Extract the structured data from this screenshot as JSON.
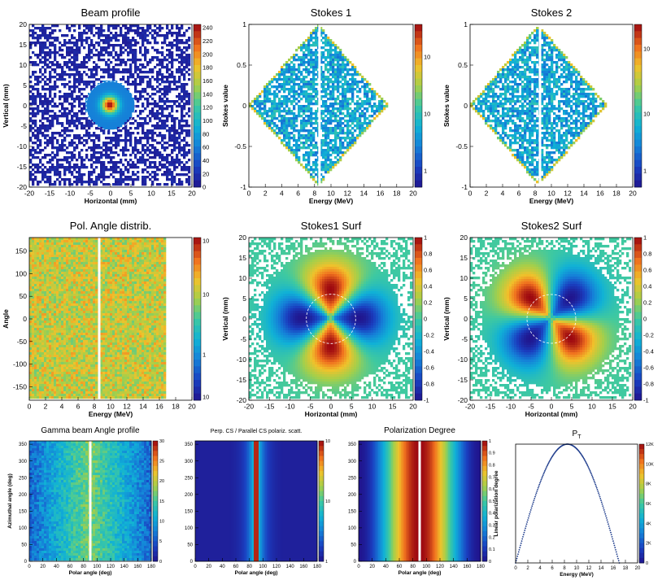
{
  "chart_data": [
    {
      "id": "beam_profile",
      "type": "heatmap",
      "style": "beam",
      "title": "Beam profile",
      "xlabel": "Horizontal (mm)",
      "ylabel": "Vertical (mm)",
      "xlim": [
        -20,
        20
      ],
      "ylim": [
        -20,
        20
      ],
      "xticks": [
        -20,
        -15,
        -10,
        -5,
        0,
        5,
        10,
        15,
        20
      ],
      "yticks": [
        -20,
        -15,
        -10,
        -5,
        0,
        5,
        10,
        15,
        20
      ],
      "colorbar_ticks": [
        0,
        20,
        40,
        60,
        80,
        100,
        120,
        140,
        160,
        180,
        200,
        220,
        240
      ],
      "colorbar_range": [
        0,
        245
      ],
      "colorbar_scale": "linear",
      "overlay": "dashed circle r=6 mm at origin"
    },
    {
      "id": "stokes1",
      "type": "heatmap",
      "style": "diamond",
      "title": "Stokes 1",
      "xlabel": "Energy (MeV)",
      "ylabel": "Stokes value",
      "xlim": [
        0,
        20
      ],
      "ylim": [
        -1,
        1
      ],
      "xticks": [
        0,
        2,
        4,
        6,
        8,
        10,
        12,
        14,
        16,
        18,
        20
      ],
      "yticks": [
        -1,
        -0.5,
        0,
        0.5,
        1
      ],
      "colorbar_ticks": [
        "10",
        "1"
      ],
      "colorbar_labels": [
        {
          "text": "10",
          "frac": 0.2
        },
        {
          "text": "10",
          "frac": 0.55
        },
        {
          "text": "1",
          "frac": 0.9
        }
      ],
      "colorbar_scale": "log"
    },
    {
      "id": "stokes2",
      "type": "heatmap",
      "style": "diamond",
      "title": "Stokes 2",
      "xlabel": "Energy (MeV)",
      "ylabel": "Stokes value",
      "xlim": [
        0,
        20
      ],
      "ylim": [
        -1,
        1
      ],
      "xticks": [
        0,
        2,
        4,
        6,
        8,
        10,
        12,
        14,
        16,
        18,
        20
      ],
      "yticks": [
        -1,
        -0.5,
        0,
        0.5,
        1
      ],
      "colorbar_labels": [
        {
          "text": "10",
          "frac": 0.15
        },
        {
          "text": "10",
          "frac": 0.55
        },
        {
          "text": "1",
          "frac": 0.9
        }
      ],
      "colorbar_scale": "log"
    },
    {
      "id": "pol_angle",
      "type": "heatmap",
      "style": "angle",
      "title": "Pol. Angle distrib.",
      "xlabel": "Energy (MeV)",
      "ylabel": "Angle",
      "xlim": [
        0,
        20
      ],
      "ylim": [
        -180,
        180
      ],
      "xticks": [
        0,
        2,
        4,
        6,
        8,
        10,
        12,
        14,
        16,
        18,
        20
      ],
      "yticks": [
        -150,
        -100,
        -50,
        0,
        50,
        100,
        150
      ],
      "colorbar_labels": [
        {
          "text": "10",
          "frac": 0.02
        },
        {
          "text": "10",
          "frac": 0.35
        },
        {
          "text": "1",
          "frac": 0.72
        },
        {
          "text": "10",
          "frac": 0.98
        }
      ],
      "colorbar_scale": "log"
    },
    {
      "id": "stokes1_surf",
      "type": "heatmap",
      "style": "quadS1",
      "title": "Stokes1 Surf",
      "xlabel": "Horizontal (mm)",
      "ylabel": "Vertical (mm)",
      "xlim": [
        -20,
        20
      ],
      "ylim": [
        -20,
        20
      ],
      "xticks": [
        -20,
        -15,
        -10,
        -5,
        0,
        5,
        10,
        15,
        20
      ],
      "yticks": [
        -20,
        -15,
        -10,
        -5,
        0,
        5,
        10,
        15,
        20
      ],
      "colorbar_labels": [
        {
          "text": "0.8",
          "frac": 0.1
        },
        {
          "text": "0.6",
          "frac": 0.2
        },
        {
          "text": "0.4",
          "frac": 0.3
        },
        {
          "text": "0.2",
          "frac": 0.4
        },
        {
          "text": "0",
          "frac": 0.5
        },
        {
          "text": "-0.2",
          "frac": 0.6
        },
        {
          "text": "-0.4",
          "frac": 0.7
        },
        {
          "text": "-0.6",
          "frac": 0.8
        },
        {
          "text": "-0.8",
          "frac": 0.9
        },
        {
          "text": "-1",
          "frac": 1.0
        },
        {
          "text": "1",
          "frac": 0.0
        }
      ],
      "colorbar_range": [
        -1,
        1
      ],
      "colorbar_scale": "linear",
      "overlay": "dashed circle r=6 mm at origin"
    },
    {
      "id": "stokes2_surf",
      "type": "heatmap",
      "style": "quadS2",
      "title": "Stokes2 Surf",
      "xlabel": "Horizontal (mm)",
      "ylabel": "Vertical (mm)",
      "xlim": [
        -20,
        20
      ],
      "ylim": [
        -20,
        20
      ],
      "xticks": [
        -20,
        -15,
        -10,
        -5,
        0,
        5,
        10,
        15,
        20
      ],
      "yticks": [
        -20,
        -15,
        -10,
        -5,
        0,
        5,
        10,
        15,
        20
      ],
      "colorbar_labels": [
        {
          "text": "1",
          "frac": 0.0
        },
        {
          "text": "0.8",
          "frac": 0.1
        },
        {
          "text": "0.6",
          "frac": 0.2
        },
        {
          "text": "0.4",
          "frac": 0.3
        },
        {
          "text": "0.2",
          "frac": 0.4
        },
        {
          "text": "0",
          "frac": 0.5
        },
        {
          "text": "-0.2",
          "frac": 0.6
        },
        {
          "text": "-0.4",
          "frac": 0.7
        },
        {
          "text": "-0.6",
          "frac": 0.8
        },
        {
          "text": "-0.8",
          "frac": 0.9
        },
        {
          "text": "-1",
          "frac": 1.0
        }
      ],
      "colorbar_range": [
        -1,
        1
      ],
      "colorbar_scale": "linear",
      "overlay": "dashed circle r=6 mm at origin"
    },
    {
      "id": "gamma_angle",
      "type": "heatmap",
      "style": "gamma",
      "title": "Gamma beam Angle profile",
      "xlabel": "Polar angle (deg)",
      "ylabel": "Azimuthal angle (deg)",
      "xlim": [
        0,
        180
      ],
      "ylim": [
        0,
        360
      ],
      "xticks": [
        0,
        20,
        40,
        60,
        80,
        100,
        120,
        140,
        160,
        180
      ],
      "yticks": [
        0,
        50,
        100,
        150,
        200,
        250,
        300,
        350
      ],
      "colorbar_labels": [
        {
          "text": "30",
          "frac": 0.0
        },
        {
          "text": "25",
          "frac": 0.167
        },
        {
          "text": "20",
          "frac": 0.333
        },
        {
          "text": "15",
          "frac": 0.5
        },
        {
          "text": "10",
          "frac": 0.667
        },
        {
          "text": "5",
          "frac": 0.833
        },
        {
          "text": "0",
          "frac": 1.0
        }
      ],
      "colorbar_range": [
        0,
        30
      ],
      "colorbar_scale": "linear"
    },
    {
      "id": "perp_cs",
      "type": "heatmap",
      "style": "perp",
      "title": "Perp. CS / Parallel CS polariz. scatt.",
      "xlabel": "Polar angle (deg)",
      "ylabel": "",
      "xlim": [
        0,
        180
      ],
      "ylim": [
        0,
        360
      ],
      "xticks": [
        0,
        20,
        40,
        60,
        80,
        100,
        120,
        140,
        160,
        180
      ],
      "yticks": [
        0,
        50,
        100,
        150,
        200,
        250,
        300,
        350
      ],
      "colorbar_labels": [
        {
          "text": "10",
          "frac": 0.0
        },
        {
          "text": "10",
          "frac": 0.5
        },
        {
          "text": "1",
          "frac": 1.0
        }
      ],
      "colorbar_scale": "log"
    },
    {
      "id": "pol_degree",
      "type": "heatmap",
      "style": "poldeg",
      "title": "Polarization Degree",
      "xlabel": "Polar angle (deg)",
      "ylabel": "",
      "xlim": [
        0,
        180
      ],
      "ylim": [
        0,
        360
      ],
      "xticks": [
        0,
        20,
        40,
        60,
        80,
        100,
        120,
        140,
        160,
        180
      ],
      "yticks": [
        0,
        50,
        100,
        150,
        200,
        250,
        300,
        350
      ],
      "colorbar_labels": [
        {
          "text": "1",
          "frac": 0.0
        },
        {
          "text": "0.9",
          "frac": 0.1
        },
        {
          "text": "0.8",
          "frac": 0.2
        },
        {
          "text": "0.7",
          "frac": 0.3
        },
        {
          "text": "0.6",
          "frac": 0.4
        },
        {
          "text": "0.5",
          "frac": 0.5
        },
        {
          "text": "0.4",
          "frac": 0.6
        },
        {
          "text": "0.3",
          "frac": 0.7
        },
        {
          "text": "0.2",
          "frac": 0.8
        },
        {
          "text": "0.1",
          "frac": 0.9
        },
        {
          "text": "0",
          "frac": 1.0
        }
      ],
      "colorbar_range": [
        0,
        1
      ],
      "colorbar_scale": "linear"
    },
    {
      "id": "pt",
      "type": "scatter",
      "style": "pt",
      "title": "P",
      "title_sub": "T",
      "xlabel": "Energy (MeV)",
      "ylabel": "Linear polarization degree",
      "xlim": [
        0,
        20
      ],
      "ylim": [
        0,
        1
      ],
      "xticks": [
        0,
        2,
        4,
        6,
        8,
        10,
        12,
        14,
        16,
        18,
        20
      ],
      "yticks": [],
      "curve": {
        "x_peak": 8.5,
        "x_end": 17,
        "y_peak": 1
      },
      "colorbar_labels": [
        {
          "text": "12K",
          "frac": 0.0
        },
        {
          "text": "10K",
          "frac": 0.167
        },
        {
          "text": "8K",
          "frac": 0.333
        },
        {
          "text": "6K",
          "frac": 0.5
        },
        {
          "text": "4K",
          "frac": 0.667
        },
        {
          "text": "2K",
          "frac": 0.833
        },
        {
          "text": "0",
          "frac": 1.0
        }
      ],
      "colorbar_range": [
        0,
        12000
      ],
      "colorbar_scale": "linear"
    }
  ]
}
